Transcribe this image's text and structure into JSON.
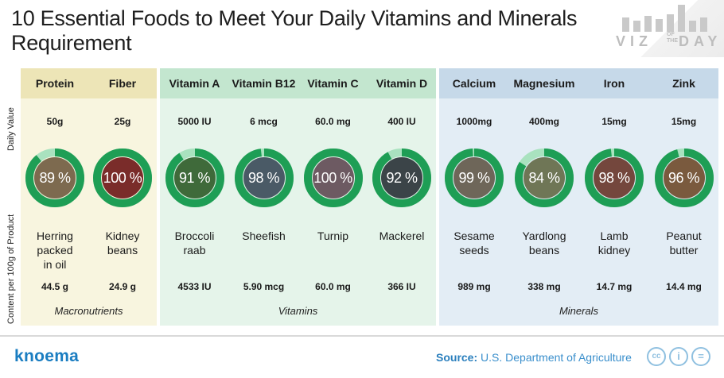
{
  "title": "10 Essential Foods to Meet Your Daily Vitamins and Minerals Requirement",
  "logo": {
    "viz": "VIZ",
    "of_the": "OF THE",
    "day": "DAY"
  },
  "side_labels": {
    "daily_value": "Daily Value",
    "content": "Content per 100g of Product"
  },
  "groups": [
    {
      "label": "Macronutrients",
      "color": "#f8f5df"
    },
    {
      "label": "Vitamins",
      "color": "#e5f4ea"
    },
    {
      "label": "Minerals",
      "color": "#e3edf5"
    }
  ],
  "columns": [
    {
      "nutrient": "Protein",
      "daily_value": "50g",
      "percent": 89,
      "percent_label": "89 %",
      "food": "Herring\npacked\nin oil",
      "amount": "44.5 g",
      "image": "herring-photo"
    },
    {
      "nutrient": "Fiber",
      "daily_value": "25g",
      "percent": 100,
      "percent_label": "100 %",
      "food": "Kidney\nbeans",
      "amount": "24.9 g",
      "image": "kidney-beans-photo"
    },
    {
      "nutrient": "Vitamin A",
      "daily_value": "5000 IU",
      "percent": 91,
      "percent_label": "91 %",
      "food": "Broccoli\nraab",
      "amount": "4533 IU",
      "image": "broccoli-raab-photo"
    },
    {
      "nutrient": "Vitamin B12",
      "daily_value": "6 mcg",
      "percent": 98,
      "percent_label": "98 %",
      "food": "Sheefish",
      "amount": "5.90 mcg",
      "image": "sheefish-photo"
    },
    {
      "nutrient": "Vitamin C",
      "daily_value": "60.0 mg",
      "percent": 100,
      "percent_label": "100 %",
      "food": "Turnip",
      "amount": "60.0 mg",
      "image": "turnip-photo"
    },
    {
      "nutrient": "Vitamin D",
      "daily_value": "400 IU",
      "percent": 92,
      "percent_label": "92 %",
      "food": "Mackerel",
      "amount": "366 IU",
      "image": "mackerel-photo"
    },
    {
      "nutrient": "Calcium",
      "daily_value": "1000mg",
      "percent": 99,
      "percent_label": "99 %",
      "food": "Sesame\nseeds",
      "amount": "989 mg",
      "image": "sesame-seeds-photo"
    },
    {
      "nutrient": "Magnesium",
      "daily_value": "400mg",
      "percent": 84,
      "percent_label": "84 %",
      "food": "Yardlong\nbeans",
      "amount": "338 mg",
      "image": "yardlong-beans-photo"
    },
    {
      "nutrient": "Iron",
      "daily_value": "15mg",
      "percent": 98,
      "percent_label": "98 %",
      "food": "Lamb\nkidney",
      "amount": "14.7 mg",
      "image": "lamb-kidney-photo"
    },
    {
      "nutrient": "Zink",
      "daily_value": "15mg",
      "percent": 96,
      "percent_label": "96 %",
      "food": "Peanut\nbutter",
      "amount": "14.4 mg",
      "image": "peanut-butter-photo"
    }
  ],
  "colors": {
    "ring": "#1e9e55",
    "ring_remaining": "#a9e2bf",
    "photo_tints": [
      "#7d6a4f",
      "#7a2c2a",
      "#3f6a3a",
      "#4a5a66",
      "#6d5a62",
      "#3b4448",
      "#6e6659",
      "#6f7656",
      "#74473d",
      "#7a5a3e"
    ]
  },
  "footer": {
    "brand": "knoema",
    "source_label": "Source:",
    "source_text": "U.S. Department of Agriculture",
    "license_icons": [
      "cc-icon",
      "attribution-icon",
      "no-derivatives-icon"
    ],
    "license_glyphs": [
      "cc",
      "i",
      "="
    ]
  }
}
